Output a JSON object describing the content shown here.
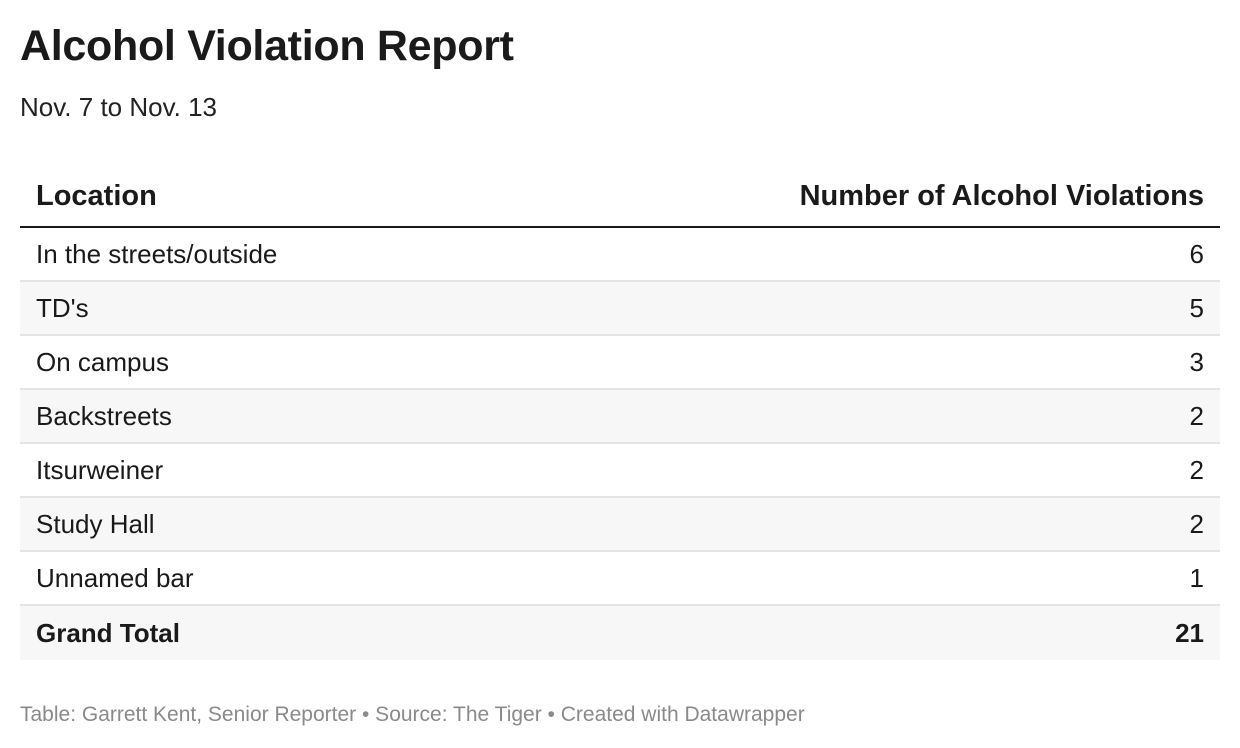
{
  "chart_data": {
    "type": "table",
    "title": "Alcohol Violation Report",
    "subtitle": "Nov. 7 to Nov. 13",
    "columns": [
      "Location",
      "Number of Alcohol Violations"
    ],
    "rows": [
      {
        "location": "In the streets/outside",
        "value": 6
      },
      {
        "location": "TD's",
        "value": 5
      },
      {
        "location": "On campus",
        "value": 3
      },
      {
        "location": "Backstreets",
        "value": 2
      },
      {
        "location": "Itsurweiner",
        "value": 2
      },
      {
        "location": "Study Hall",
        "value": 2
      },
      {
        "location": "Unnamed bar",
        "value": 1
      }
    ],
    "total": {
      "label": "Grand Total",
      "value": 21
    }
  },
  "footer": {
    "text": "Table: Garrett Kent, Senior Reporter • Source: The Tiger • Created with Datawrapper"
  }
}
